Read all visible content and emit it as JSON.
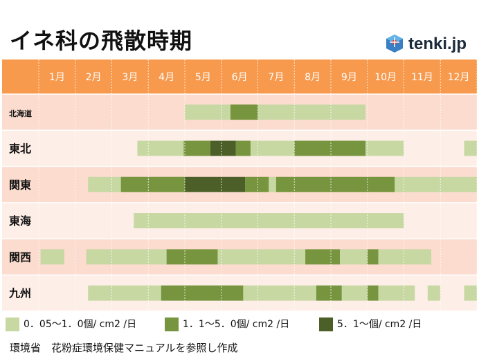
{
  "title": "イネ科の飛散時期",
  "logo": {
    "text": "tenki.jp",
    "icon": "tenki-logo-icon"
  },
  "chart_data": {
    "type": "gantt",
    "title": "イネ科の飛散時期",
    "categories": [
      "1月",
      "2月",
      "3月",
      "4月",
      "5月",
      "6月",
      "7月",
      "8月",
      "9月",
      "10月",
      "11月",
      "12月"
    ],
    "rows": [
      {
        "label": "北海道",
        "segments": [
          [
            5.0,
            6.25,
            1
          ],
          [
            6.25,
            7.0,
            2
          ],
          [
            7.0,
            9.95,
            1
          ]
        ]
      },
      {
        "label": "東北",
        "segments": [
          [
            3.7,
            4.97,
            1
          ],
          [
            4.97,
            5.7,
            2
          ],
          [
            5.7,
            6.4,
            3
          ],
          [
            6.4,
            6.8,
            2
          ],
          [
            6.8,
            8.0,
            1
          ],
          [
            8.0,
            9.95,
            2
          ],
          [
            9.95,
            11.0,
            1
          ],
          [
            12.65,
            13.0,
            1
          ]
        ]
      },
      {
        "label": "関東",
        "segments": [
          [
            2.35,
            3.25,
            1
          ],
          [
            3.25,
            5.0,
            1
          ],
          [
            3.25,
            4.0,
            2
          ],
          [
            4.0,
            5.0,
            2
          ],
          [
            5.0,
            6.65,
            3
          ],
          [
            6.65,
            7.3,
            2
          ],
          [
            7.3,
            7.5,
            1
          ],
          [
            7.5,
            10.75,
            2
          ],
          [
            10.75,
            13.0,
            1
          ]
        ]
      },
      {
        "label": "東海",
        "segments": [
          [
            3.6,
            11.0,
            1
          ]
        ]
      },
      {
        "label": "関西",
        "segments": [
          [
            1.05,
            1.7,
            1
          ],
          [
            2.3,
            4.5,
            1
          ],
          [
            4.5,
            5.9,
            2
          ],
          [
            5.9,
            8.3,
            1
          ],
          [
            8.3,
            9.25,
            2
          ],
          [
            9.25,
            10.0,
            1
          ],
          [
            10.0,
            10.3,
            2
          ],
          [
            10.3,
            11.75,
            1
          ]
        ]
      },
      {
        "label": "九州",
        "segments": [
          [
            2.35,
            4.35,
            1
          ],
          [
            4.35,
            6.6,
            2
          ],
          [
            6.6,
            8.6,
            1
          ],
          [
            8.6,
            9.3,
            2
          ],
          [
            9.3,
            10.0,
            1
          ],
          [
            10.0,
            10.3,
            2
          ],
          [
            10.3,
            11.3,
            1
          ],
          [
            11.65,
            12.0,
            1
          ],
          [
            12.65,
            13.0,
            1
          ]
        ]
      }
    ],
    "levels": [
      {
        "level": 1,
        "label": "0．05～1．0個/ cm2 /日",
        "color": "#c8d8a3"
      },
      {
        "level": 2,
        "label": "1．1～5．0個/ cm2 /日",
        "color": "#77953f"
      },
      {
        "level": 3,
        "label": "5．1～個/ cm2 /日",
        "color": "#4d5f28"
      }
    ]
  },
  "colors": {
    "header_bg": "#f79a4e",
    "row_odd": "#fbdccf",
    "row_even": "#fdefe8",
    "grid_line": "#ffffff"
  },
  "source": "環境省　花粉症環境保健マニュアルを参照し作成"
}
